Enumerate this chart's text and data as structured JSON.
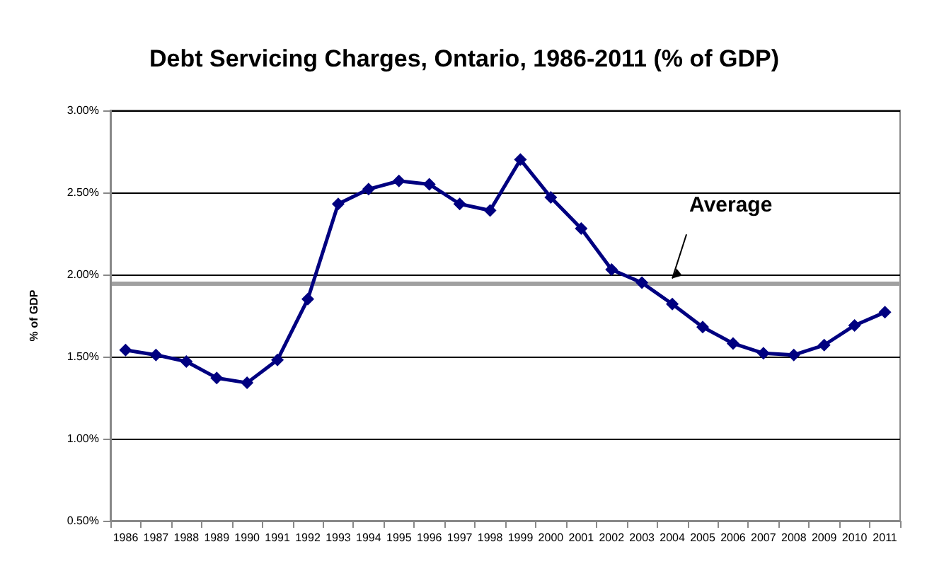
{
  "chart_data": {
    "type": "line",
    "title": "Debt Servicing Charges, Ontario, 1986-2011 (% of GDP)",
    "ylabel": "% of GDP",
    "categories": [
      "1986",
      "1987",
      "1988",
      "1989",
      "1990",
      "1991",
      "1992",
      "1993",
      "1994",
      "1995",
      "1996",
      "1997",
      "1998",
      "1999",
      "2000",
      "2001",
      "2002",
      "2003",
      "2004",
      "2005",
      "2006",
      "2007",
      "2008",
      "2009",
      "2010",
      "2011"
    ],
    "series": [
      {
        "color": "#000080",
        "values": [
          1.54,
          1.51,
          1.47,
          1.37,
          1.34,
          1.48,
          1.85,
          2.43,
          2.52,
          2.57,
          2.55,
          2.43,
          2.39,
          2.7,
          2.47,
          2.28,
          2.03,
          1.95,
          1.82,
          1.68,
          1.58,
          1.52,
          1.51,
          1.57,
          1.69,
          1.77
        ]
      }
    ],
    "ylim": [
      0.5,
      3
    ],
    "yticks": [
      {
        "value": 0.5,
        "label": "0.50%"
      },
      {
        "value": 1,
        "label": "1.00%"
      },
      {
        "value": 1.5,
        "label": "1.50%"
      },
      {
        "value": 2,
        "label": "2.00%"
      },
      {
        "value": 2.5,
        "label": "2.50%"
      },
      {
        "value": 3,
        "label": "3.00%"
      }
    ],
    "grid": "y",
    "marker": "diamond",
    "line_style": "solid",
    "ref_lines": [
      {
        "axis": "y",
        "value": 1.95,
        "label": "Average",
        "color": "#a0a0a0"
      }
    ]
  }
}
